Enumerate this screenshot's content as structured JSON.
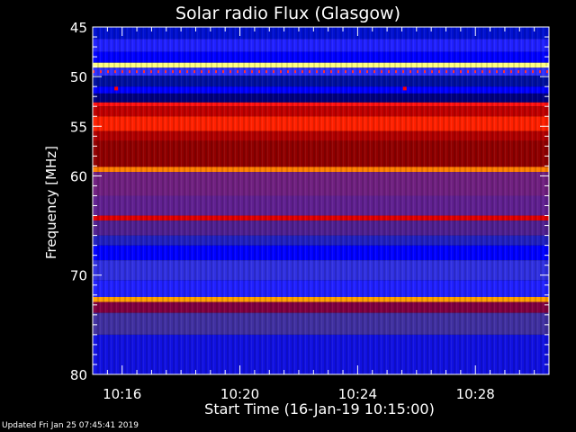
{
  "chart_data": {
    "type": "heatmap",
    "title": "Solar radio Flux (Glasgow)",
    "xlabel": "Start Time (16-Jan-19 10:15:00)",
    "ylabel": "Frequency [MHz]",
    "x_unit": "minutes after 10:15:00",
    "xlim": [
      0,
      15.5
    ],
    "ylim": [
      45,
      80
    ],
    "y_axis_inverted": true,
    "xticks": [
      {
        "value": 1,
        "label": "10:16"
      },
      {
        "value": 5,
        "label": "10:20"
      },
      {
        "value": 9,
        "label": "10:24"
      },
      {
        "value": 13,
        "label": "10:28"
      }
    ],
    "yticks": [
      {
        "value": 45,
        "label": "45"
      },
      {
        "value": 50,
        "label": "50"
      },
      {
        "value": 55,
        "label": "55"
      },
      {
        "value": 60,
        "label": "60"
      },
      {
        "value": 70,
        "label": "70"
      },
      {
        "value": 80,
        "label": "80"
      }
    ],
    "colormap": [
      "#000080",
      "#0000ff",
      "#3030e0",
      "#502090",
      "#701050",
      "#a00010",
      "#ff0000",
      "#ff8000",
      "#ffffa0"
    ],
    "bands": [
      {
        "f0": 45.0,
        "f1": 46.2,
        "color": "#0010d0"
      },
      {
        "f0": 46.2,
        "f1": 47.5,
        "color": "#2020ff"
      },
      {
        "f0": 47.5,
        "f1": 48.6,
        "color": "#0000ff"
      },
      {
        "f0": 48.6,
        "f1": 49.1,
        "color": "#ffff80"
      },
      {
        "f0": 49.1,
        "f1": 49.9,
        "color": "#3030ff"
      },
      {
        "f0": 49.9,
        "f1": 51.0,
        "color": "#0010a0"
      },
      {
        "f0": 51.0,
        "f1": 51.7,
        "color": "#0000ff"
      },
      {
        "f0": 51.7,
        "f1": 52.6,
        "color": "#000080"
      },
      {
        "f0": 52.6,
        "f1": 53.0,
        "color": "#ff1010"
      },
      {
        "f0": 53.0,
        "f1": 54.0,
        "color": "#c00000"
      },
      {
        "f0": 54.0,
        "f1": 55.5,
        "color": "#ff2000"
      },
      {
        "f0": 55.5,
        "f1": 56.5,
        "color": "#b00000"
      },
      {
        "f0": 56.5,
        "f1": 59.1,
        "color": "#900000"
      },
      {
        "f0": 59.1,
        "f1": 59.6,
        "color": "#ff8000"
      },
      {
        "f0": 59.6,
        "f1": 62.0,
        "color": "#702080"
      },
      {
        "f0": 62.0,
        "f1": 64.0,
        "color": "#602090"
      },
      {
        "f0": 64.0,
        "f1": 64.5,
        "color": "#e00000"
      },
      {
        "f0": 64.5,
        "f1": 66.0,
        "color": "#502090"
      },
      {
        "f0": 66.0,
        "f1": 67.0,
        "color": "#2020c0"
      },
      {
        "f0": 67.0,
        "f1": 68.5,
        "color": "#0000ff"
      },
      {
        "f0": 68.5,
        "f1": 70.5,
        "color": "#3030e0"
      },
      {
        "f0": 70.5,
        "f1": 72.2,
        "color": "#2020ff"
      },
      {
        "f0": 72.2,
        "f1": 72.7,
        "color": "#ffa000"
      },
      {
        "f0": 72.7,
        "f1": 73.8,
        "color": "#800040"
      },
      {
        "f0": 73.8,
        "f1": 76.0,
        "color": "#4030a0"
      },
      {
        "f0": 76.0,
        "f1": 80.0,
        "color": "#1010e0"
      }
    ],
    "speckle_lines": [
      {
        "freq": 49.5,
        "color": "#ff3030"
      }
    ],
    "point_events": [
      {
        "time": 0.8,
        "freq": 51.2,
        "color": "#ff0000"
      },
      {
        "time": 10.6,
        "freq": 51.2,
        "color": "#ff0000"
      }
    ]
  },
  "footer": {
    "updated": "Updated Fri Jan 25 07:45:41 2019"
  }
}
